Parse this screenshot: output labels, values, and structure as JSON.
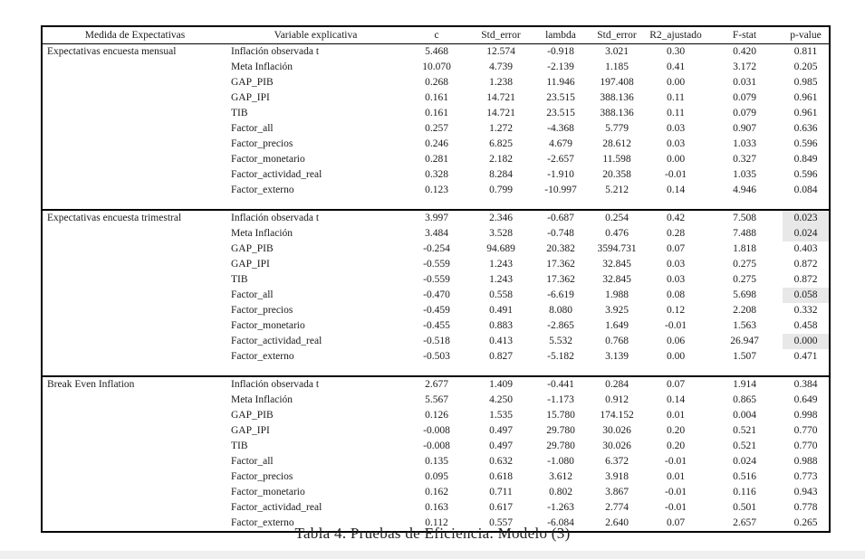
{
  "table": {
    "caption": "Tabla 4. Pruebas de Eficiencia. Modelo (3)",
    "highlight_color": "#e8e8e8",
    "columns": [
      {
        "key": "measure",
        "label": "Medida de Expectativas"
      },
      {
        "key": "variable",
        "label": "Variable explicativa"
      },
      {
        "key": "c",
        "label": "c"
      },
      {
        "key": "std-error-c",
        "label": "Std_error"
      },
      {
        "key": "lambda",
        "label": "lambda"
      },
      {
        "key": "std-error-lambda",
        "label": "Std_error"
      },
      {
        "key": "r2-ajustado",
        "label": "R2_ajustado"
      },
      {
        "key": "f-stat",
        "label": "F-stat"
      },
      {
        "key": "p-value",
        "label": "p-value"
      }
    ],
    "value_keys": [
      "c",
      "std-error-c",
      "lambda",
      "std-error-lambda",
      "r2-ajustado",
      "f-stat",
      "p-value"
    ],
    "sections": [
      {
        "measure": "Expectativas encuesta mensual",
        "rows": [
          {
            "variable": "Inflación observada t",
            "values": [
              "5.468",
              "12.574",
              "-0.918",
              "3.021",
              "0.30",
              "0.420",
              "0.811"
            ],
            "p_highlight": false
          },
          {
            "variable": "Meta Inflación",
            "values": [
              "10.070",
              "4.739",
              "-2.139",
              "1.185",
              "0.41",
              "3.172",
              "0.205"
            ],
            "p_highlight": false
          },
          {
            "variable": "GAP_PIB",
            "values": [
              "0.268",
              "1.238",
              "11.946",
              "197.408",
              "0.00",
              "0.031",
              "0.985"
            ],
            "p_highlight": false
          },
          {
            "variable": "GAP_IPI",
            "values": [
              "0.161",
              "14.721",
              "23.515",
              "388.136",
              "0.11",
              "0.079",
              "0.961"
            ],
            "p_highlight": false
          },
          {
            "variable": "TIB",
            "values": [
              "0.161",
              "14.721",
              "23.515",
              "388.136",
              "0.11",
              "0.079",
              "0.961"
            ],
            "p_highlight": false
          },
          {
            "variable": "Factor_all",
            "values": [
              "0.257",
              "1.272",
              "-4.368",
              "5.779",
              "0.03",
              "0.907",
              "0.636"
            ],
            "p_highlight": false
          },
          {
            "variable": "Factor_precios",
            "values": [
              "0.246",
              "6.825",
              "4.679",
              "28.612",
              "0.03",
              "1.033",
              "0.596"
            ],
            "p_highlight": false
          },
          {
            "variable": "Factor_monetario",
            "values": [
              "0.281",
              "2.182",
              "-2.657",
              "11.598",
              "0.00",
              "0.327",
              "0.849"
            ],
            "p_highlight": false
          },
          {
            "variable": "Factor_actividad_real",
            "values": [
              "0.328",
              "8.284",
              "-1.910",
              "20.358",
              "-0.01",
              "1.035",
              "0.596"
            ],
            "p_highlight": false
          },
          {
            "variable": "Factor_externo",
            "values": [
              "0.123",
              "0.799",
              "-10.997",
              "5.212",
              "0.14",
              "4.946",
              "0.084"
            ],
            "p_highlight": false
          }
        ]
      },
      {
        "measure": "Expectativas encuesta trimestral",
        "rows": [
          {
            "variable": "Inflación observada t",
            "values": [
              "3.997",
              "2.346",
              "-0.687",
              "0.254",
              "0.42",
              "7.508",
              "0.023"
            ],
            "p_highlight": true
          },
          {
            "variable": "Meta Inflación",
            "values": [
              "3.484",
              "3.528",
              "-0.748",
              "0.476",
              "0.28",
              "7.488",
              "0.024"
            ],
            "p_highlight": true
          },
          {
            "variable": "GAP_PIB",
            "values": [
              "-0.254",
              "94.689",
              "20.382",
              "3594.731",
              "0.07",
              "1.818",
              "0.403"
            ],
            "p_highlight": false
          },
          {
            "variable": "GAP_IPI",
            "values": [
              "-0.559",
              "1.243",
              "17.362",
              "32.845",
              "0.03",
              "0.275",
              "0.872"
            ],
            "p_highlight": false
          },
          {
            "variable": "TIB",
            "values": [
              "-0.559",
              "1.243",
              "17.362",
              "32.845",
              "0.03",
              "0.275",
              "0.872"
            ],
            "p_highlight": false
          },
          {
            "variable": "Factor_all",
            "values": [
              "-0.470",
              "0.558",
              "-6.619",
              "1.988",
              "0.08",
              "5.698",
              "0.058"
            ],
            "p_highlight": true
          },
          {
            "variable": "Factor_precios",
            "values": [
              "-0.459",
              "0.491",
              "8.080",
              "3.925",
              "0.12",
              "2.208",
              "0.332"
            ],
            "p_highlight": false
          },
          {
            "variable": "Factor_monetario",
            "values": [
              "-0.455",
              "0.883",
              "-2.865",
              "1.649",
              "-0.01",
              "1.563",
              "0.458"
            ],
            "p_highlight": false
          },
          {
            "variable": "Factor_actividad_real",
            "values": [
              "-0.518",
              "0.413",
              "5.532",
              "0.768",
              "0.06",
              "26.947",
              "0.000"
            ],
            "p_highlight": true
          },
          {
            "variable": "Factor_externo",
            "values": [
              "-0.503",
              "0.827",
              "-5.182",
              "3.139",
              "0.00",
              "1.507",
              "0.471"
            ],
            "p_highlight": false
          }
        ]
      },
      {
        "measure": "Break Even Inflation",
        "rows": [
          {
            "variable": "Inflación observada t",
            "values": [
              "2.677",
              "1.409",
              "-0.441",
              "0.284",
              "0.07",
              "1.914",
              "0.384"
            ],
            "p_highlight": false
          },
          {
            "variable": "Meta Inflación",
            "values": [
              "5.567",
              "4.250",
              "-1.173",
              "0.912",
              "0.14",
              "0.865",
              "0.649"
            ],
            "p_highlight": false
          },
          {
            "variable": "GAP_PIB",
            "values": [
              "0.126",
              "1.535",
              "15.780",
              "174.152",
              "0.01",
              "0.004",
              "0.998"
            ],
            "p_highlight": false
          },
          {
            "variable": "GAP_IPI",
            "values": [
              "-0.008",
              "0.497",
              "29.780",
              "30.026",
              "0.20",
              "0.521",
              "0.770"
            ],
            "p_highlight": false
          },
          {
            "variable": "TIB",
            "values": [
              "-0.008",
              "0.497",
              "29.780",
              "30.026",
              "0.20",
              "0.521",
              "0.770"
            ],
            "p_highlight": false
          },
          {
            "variable": "Factor_all",
            "values": [
              "0.135",
              "0.632",
              "-1.080",
              "6.372",
              "-0.01",
              "0.024",
              "0.988"
            ],
            "p_highlight": false
          },
          {
            "variable": "Factor_precios",
            "values": [
              "0.095",
              "0.618",
              "3.612",
              "3.918",
              "0.01",
              "0.516",
              "0.773"
            ],
            "p_highlight": false
          },
          {
            "variable": "Factor_monetario",
            "values": [
              "0.162",
              "0.711",
              "0.802",
              "3.867",
              "-0.01",
              "0.116",
              "0.943"
            ],
            "p_highlight": false
          },
          {
            "variable": "Factor_actividad_real",
            "values": [
              "0.163",
              "0.617",
              "-1.263",
              "2.774",
              "-0.01",
              "0.501",
              "0.778"
            ],
            "p_highlight": false
          },
          {
            "variable": "Factor_externo",
            "values": [
              "0.112",
              "0.557",
              "-6.084",
              "2.640",
              "0.07",
              "2.657",
              "0.265"
            ],
            "p_highlight": false
          }
        ]
      }
    ]
  }
}
